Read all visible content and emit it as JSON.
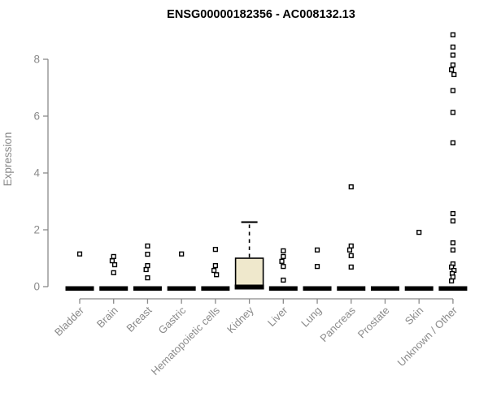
{
  "chart_data": {
    "type": "boxplot",
    "title": "ENSG00000182356 - AC008132.13",
    "ylabel": "Expression",
    "xlabel": "",
    "yticks": [
      0,
      2,
      4,
      6,
      8
    ],
    "ylim": [
      0,
      9.2
    ],
    "grid": false,
    "legend": null,
    "categories": [
      "Bladder",
      "Brain",
      "Breast",
      "Gastric",
      "Hematopoietic cells",
      "Kidney",
      "Liver",
      "Lung",
      "Pancreas",
      "Prostate",
      "Skin",
      "Unknown / Other"
    ],
    "boxes": [
      {
        "category": "Bladder",
        "q1": 0,
        "median": 0,
        "q3": 0,
        "whisker_low": 0,
        "whisker_high": 0,
        "outliers": [
          1.15
        ]
      },
      {
        "category": "Brain",
        "q1": 0,
        "median": 0,
        "q3": 0,
        "whisker_low": 0,
        "whisker_high": 0,
        "outliers": [
          1.06,
          0.91,
          0.77,
          0.49
        ]
      },
      {
        "category": "Breast",
        "q1": 0,
        "median": 0,
        "q3": 0,
        "whisker_low": 0,
        "whisker_high": 0,
        "outliers": [
          1.43,
          1.14,
          0.74,
          0.6,
          0.31
        ]
      },
      {
        "category": "Gastric",
        "q1": 0,
        "median": 0,
        "q3": 0,
        "whisker_low": 0,
        "whisker_high": 0,
        "outliers": [
          1.15
        ]
      },
      {
        "category": "Hematopoietic cells",
        "q1": 0,
        "median": 0,
        "q3": 0,
        "whisker_low": 0,
        "whisker_high": 0,
        "outliers": [
          1.31,
          0.74,
          0.57,
          0.42
        ]
      },
      {
        "category": "Kidney",
        "q1": 0,
        "median": 0,
        "q3": 1.0,
        "whisker_low": 0,
        "whisker_high": 2.27,
        "outliers": []
      },
      {
        "category": "Liver",
        "q1": 0,
        "median": 0,
        "q3": 0,
        "whisker_low": 0,
        "whisker_high": 0,
        "outliers": [
          1.26,
          1.06,
          0.89,
          0.71,
          0.23
        ]
      },
      {
        "category": "Lung",
        "q1": 0,
        "median": 0,
        "q3": 0,
        "whisker_low": 0,
        "whisker_high": 0,
        "outliers": [
          1.29,
          0.71
        ]
      },
      {
        "category": "Pancreas",
        "q1": 0,
        "median": 0,
        "q3": 0,
        "whisker_low": 0,
        "whisker_high": 0,
        "outliers": [
          3.51,
          1.43,
          1.29,
          1.09,
          0.69
        ]
      },
      {
        "category": "Prostate",
        "q1": 0,
        "median": 0,
        "q3": 0,
        "whisker_low": 0,
        "whisker_high": 0,
        "outliers": []
      },
      {
        "category": "Skin",
        "q1": 0,
        "median": 0,
        "q3": 0,
        "whisker_low": 0,
        "whisker_high": 0,
        "outliers": [
          1.91
        ]
      },
      {
        "category": "Unknown / Other",
        "q1": 0,
        "median": 0,
        "q3": 0,
        "whisker_low": 0,
        "whisker_high": 0,
        "outliers": [
          8.86,
          8.43,
          8.15,
          7.8,
          7.63,
          7.46,
          6.9,
          6.13,
          5.06,
          2.57,
          2.31,
          1.54,
          1.29,
          0.8,
          0.69,
          0.57,
          0.46,
          0.34,
          0.2
        ]
      }
    ],
    "colors": {
      "box_fill": "#efe8cc",
      "box_border": "#000000",
      "median": "#000000",
      "outlier_fill": "#ffffff",
      "outlier_stroke": "#000000",
      "axis": "#8a8a8a",
      "tick_text": "#8a8a8a",
      "title": "#000000"
    }
  }
}
